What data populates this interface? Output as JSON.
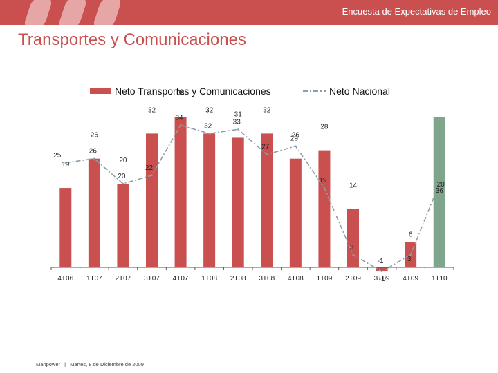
{
  "header": {
    "text": "Encuesta de Expectativas de Empleo"
  },
  "page_title": "Transportes y Comunicaciones",
  "footer": {
    "company": "Manpower",
    "separator": "|",
    "date": "Martes, 8 de Diciembre de 2009"
  },
  "colors": {
    "header": "#c9504f",
    "bar": "#c9504f",
    "bar_highlight": "#7fa68c",
    "national_line": "#8aa0ac",
    "text": "#222222"
  },
  "chart_data": {
    "type": "bar",
    "categories": [
      "4T06",
      "1T07",
      "2T07",
      "3T07",
      "4T07",
      "1T08",
      "2T08",
      "3T08",
      "4T08",
      "1T09",
      "2T09",
      "3T09",
      "4T09",
      "1T10"
    ],
    "series": [
      {
        "name": "Neto Transportes y Comunicaciones",
        "type": "bar",
        "values": [
          19,
          26,
          20,
          32,
          36,
          32,
          31,
          32,
          26,
          28,
          14,
          -1,
          6,
          36
        ]
      },
      {
        "name": "Neto Nacional",
        "type": "line",
        "style": "dash-dot",
        "values": [
          25,
          26,
          20,
          22,
          34,
          32,
          33,
          27,
          29,
          19,
          3,
          -1,
          3,
          20
        ]
      }
    ],
    "legend": {
      "position": "top"
    },
    "grid": false
  }
}
